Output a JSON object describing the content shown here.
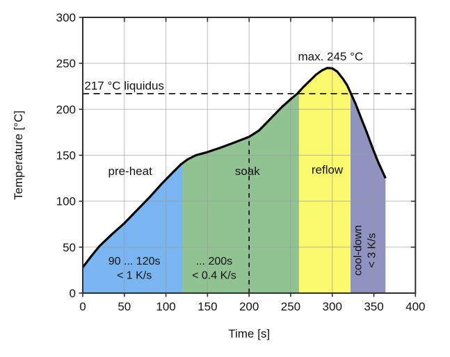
{
  "chart_data": {
    "type": "area",
    "title": "",
    "xlabel": "Time [s]",
    "ylabel": "Temperature [°C]",
    "xlim": [
      0,
      400
    ],
    "ylim": [
      0,
      300
    ],
    "xticks": [
      0,
      50,
      100,
      150,
      200,
      250,
      300,
      350,
      400
    ],
    "yticks": [
      0,
      50,
      100,
      150,
      200,
      250,
      300
    ],
    "grid": true,
    "legend_position": "none",
    "curve_name": "solder-reflow-temperature-profile",
    "curve_points": [
      [
        0,
        28
      ],
      [
        10,
        40
      ],
      [
        20,
        51
      ],
      [
        35,
        64
      ],
      [
        50,
        76
      ],
      [
        65,
        90
      ],
      [
        80,
        104
      ],
      [
        95,
        119
      ],
      [
        108,
        131
      ],
      [
        118,
        140
      ],
      [
        126,
        145.5
      ],
      [
        136,
        150
      ],
      [
        150,
        153.5
      ],
      [
        165,
        158
      ],
      [
        180,
        163
      ],
      [
        200,
        170
      ],
      [
        212,
        177
      ],
      [
        225,
        189
      ],
      [
        240,
        203
      ],
      [
        250,
        211
      ],
      [
        258,
        217
      ],
      [
        265,
        224
      ],
      [
        273,
        231
      ],
      [
        281,
        238
      ],
      [
        288,
        242.5
      ],
      [
        294,
        245
      ],
      [
        300,
        244.5
      ],
      [
        306,
        241
      ],
      [
        313,
        233
      ],
      [
        318,
        226
      ],
      [
        322,
        218
      ],
      [
        328,
        206
      ],
      [
        334,
        192
      ],
      [
        341,
        176
      ],
      [
        348,
        159
      ],
      [
        355,
        143
      ],
      [
        364,
        125
      ]
    ],
    "regions": [
      {
        "id": "pre-heat",
        "label": "pre-heat",
        "from": 0,
        "to": 120,
        "color": "#79b5f0",
        "label_x": 57,
        "label_y": 128.5
      },
      {
        "id": "soak",
        "label": "soak",
        "from": 120,
        "to": 260,
        "color": "#90c292",
        "label_x": 198,
        "label_y": 128.5
      },
      {
        "id": "reflow",
        "label": "reflow",
        "from": 260,
        "to": 322,
        "color": "#fbf96d",
        "label_x": 294,
        "label_y": 130
      },
      {
        "id": "cool-down",
        "label": "",
        "from": 322,
        "to": 364,
        "color": "#9092c0"
      }
    ],
    "liquidus_line": {
      "temp": 217,
      "label": "217 °C liquidus",
      "label_x": 2,
      "label_y": 221.5
    },
    "peak_annotation": {
      "text": "max. 245 °C",
      "x": 298,
      "y": 253
    },
    "soak_time_marker_x": 200,
    "rate_annotations": [
      {
        "id": "pre-heat-rate",
        "lines": [
          "90 ... 120s",
          "< 1 K/s"
        ],
        "x": 62,
        "ys": [
          31,
          15.5
        ],
        "rotate": 0
      },
      {
        "id": "soak-rate",
        "lines": [
          "... 200s",
          "< 0.4 K/s"
        ],
        "x": 158,
        "ys": [
          31,
          15.5
        ],
        "rotate": 0
      },
      {
        "id": "cool-down-rate",
        "lines": [
          "cool-down",
          "< 3 K/s"
        ],
        "x": 336,
        "y_center": 46.5,
        "rotate": -90
      }
    ]
  },
  "style": {
    "background": "#ffffff",
    "grid_color": "#9a9a9a",
    "border_color": "#2f2f2f",
    "curve_color": "#000000",
    "dash_color": "#000000",
    "text_color": "#111111"
  }
}
